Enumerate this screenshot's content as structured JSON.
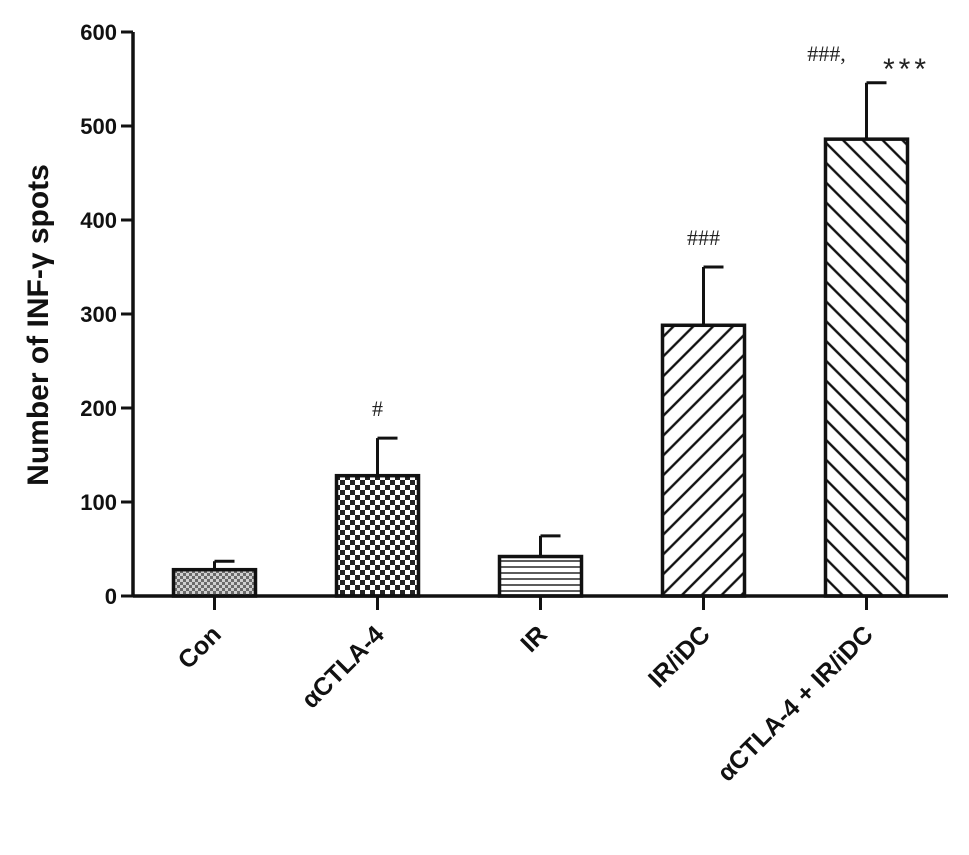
{
  "chart_data": {
    "type": "bar",
    "ylabel": "Number of INF-γ spots",
    "ylim": [
      0,
      600
    ],
    "yticks": [
      0,
      100,
      200,
      300,
      400,
      500,
      600
    ],
    "categories": [
      "Con",
      "αCTLA-4",
      "IR",
      "IR/iDC",
      "αCTLA-4 + IR/iDC"
    ],
    "values": [
      28,
      128,
      42,
      288,
      486
    ],
    "errors": [
      9,
      40,
      22,
      62,
      60
    ],
    "annotations": [
      "",
      "#",
      "",
      "###",
      "###,"
    ],
    "extra_annotations": [
      "",
      "",
      "",
      "",
      "***"
    ],
    "patterns": [
      "dense-dots",
      "checker",
      "horizontal-lines",
      "diagonal-lines-rl",
      "diagonal-lines-lr"
    ],
    "grid": false,
    "legend": "none"
  }
}
